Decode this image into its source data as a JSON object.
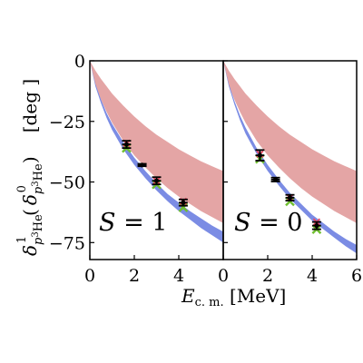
{
  "chart_data": [
    {
      "type": "scatter",
      "panel_label": "S = 1",
      "xlim": [
        0,
        6
      ],
      "ylim": [
        -82,
        0
      ],
      "xticks": [
        0,
        2,
        4
      ],
      "yticks": [
        0,
        -25,
        -50,
        -75
      ],
      "red_band": {
        "x": [
          0,
          0.25,
          0.5,
          0.75,
          1,
          1.5,
          2,
          2.5,
          3,
          3.5,
          4,
          4.5,
          5,
          5.5,
          6
        ],
        "upper": [
          0,
          -4,
          -7.5,
          -10.5,
          -13.5,
          -18.5,
          -23,
          -27,
          -30.5,
          -33.5,
          -36.5,
          -39,
          -41.5,
          -43.5,
          -45.5
        ],
        "lower": [
          0,
          -10,
          -16,
          -21,
          -25.5,
          -33,
          -39,
          -44,
          -48.5,
          -52.5,
          -56,
          -59,
          -62,
          -64.5,
          -67
        ]
      },
      "blue_band": {
        "x": [
          0,
          0.25,
          0.5,
          0.75,
          1,
          1.5,
          2,
          2.5,
          3,
          3.5,
          4,
          4.5,
          5,
          5.5,
          6
        ],
        "upper": [
          0,
          -9.5,
          -16,
          -21.5,
          -26,
          -33.5,
          -40,
          -45.5,
          -50.5,
          -55,
          -58.5,
          -62,
          -65,
          -68,
          -70.5
        ],
        "lower": [
          0,
          -10.5,
          -17.5,
          -23.5,
          -28.5,
          -36.5,
          -43,
          -48.5,
          -53.5,
          -58,
          -62,
          -65.5,
          -69,
          -72,
          -75
        ]
      },
      "data_points": [
        {
          "x": 1.65,
          "y": -34.5,
          "xerr": 0.2,
          "yerr": 1.5
        },
        {
          "x": 2.35,
          "y": -43.0,
          "xerr": 0.2,
          "yerr": 0.5
        },
        {
          "x": 3.0,
          "y": -49.5,
          "xerr": 0.2,
          "yerr": 1.5
        },
        {
          "x": 4.2,
          "y": -58.5,
          "xerr": 0.2,
          "yerr": 1.3
        }
      ],
      "green_markers": [
        {
          "x": 1.65,
          "y": -36.0
        },
        {
          "x": 3.0,
          "y": -51.0
        },
        {
          "x": 4.2,
          "y": -60.5
        }
      ],
      "pink_markers": [
        {
          "x": 1.65,
          "y": -34.0
        },
        {
          "x": 3.0,
          "y": -49.5
        },
        {
          "x": 4.2,
          "y": -58.0
        }
      ]
    },
    {
      "type": "scatter",
      "panel_label": "S = 0",
      "xlim": [
        0,
        6
      ],
      "ylim": [
        -82,
        0
      ],
      "xticks": [
        0,
        2,
        4,
        6
      ],
      "yticks": [
        0,
        -25,
        -50,
        -75
      ],
      "red_band": {
        "x": [
          0,
          0.25,
          0.5,
          0.75,
          1,
          1.5,
          2,
          2.5,
          3,
          3.5,
          4,
          4.5,
          5,
          5.5,
          6
        ],
        "upper": [
          0,
          -4,
          -7.5,
          -10.5,
          -13.5,
          -18.5,
          -23,
          -27,
          -30.5,
          -33.5,
          -36.5,
          -39,
          -41.5,
          -43.5,
          -45.5
        ],
        "lower": [
          0,
          -10,
          -16,
          -21,
          -25.5,
          -33,
          -39,
          -44,
          -48.5,
          -52.5,
          -56,
          -59,
          -62,
          -64.5,
          -67
        ]
      },
      "blue_band": {
        "x": [
          0,
          0.25,
          0.5,
          0.75,
          1,
          1.5,
          2,
          2.5,
          3,
          3.5,
          4,
          4.5,
          5,
          5.5,
          6
        ],
        "upper": [
          0,
          -9.5,
          -16.5,
          -22.5,
          -27.5,
          -36,
          -43,
          -49,
          -54.5,
          -59,
          -63.5,
          -67,
          -70.5,
          -73.5,
          -76
        ],
        "lower": [
          0,
          -10.5,
          -18,
          -24.5,
          -30,
          -38.5,
          -45.5,
          -51.5,
          -57,
          -61.5,
          -66,
          -69.5,
          -73,
          -76.5,
          -79.5
        ]
      },
      "data_points": [
        {
          "x": 1.65,
          "y": -39.0,
          "xerr": 0.2,
          "yerr": 2.2
        },
        {
          "x": 2.35,
          "y": -49.0,
          "xerr": 0.2,
          "yerr": 0.8
        },
        {
          "x": 3.0,
          "y": -56.5,
          "xerr": 0.2,
          "yerr": 1.2
        },
        {
          "x": 4.2,
          "y": -68.0,
          "xerr": 0.2,
          "yerr": 1.5
        }
      ],
      "green_markers": [
        {
          "x": 1.65,
          "y": -40.5
        },
        {
          "x": 3.0,
          "y": -58.0
        },
        {
          "x": 4.2,
          "y": -69.5
        }
      ],
      "pink_markers": [
        {
          "x": 1.65,
          "y": -38.5
        },
        {
          "x": 3.0,
          "y": -56.5
        },
        {
          "x": 4.2,
          "y": -66.5
        }
      ]
    }
  ],
  "colors": {
    "red_band": "#e4a5a5",
    "blue_band": "#7b8ce4",
    "data": "#000000",
    "green_marker": "#6fbf2f",
    "pink_marker": "#e8465f"
  }
}
